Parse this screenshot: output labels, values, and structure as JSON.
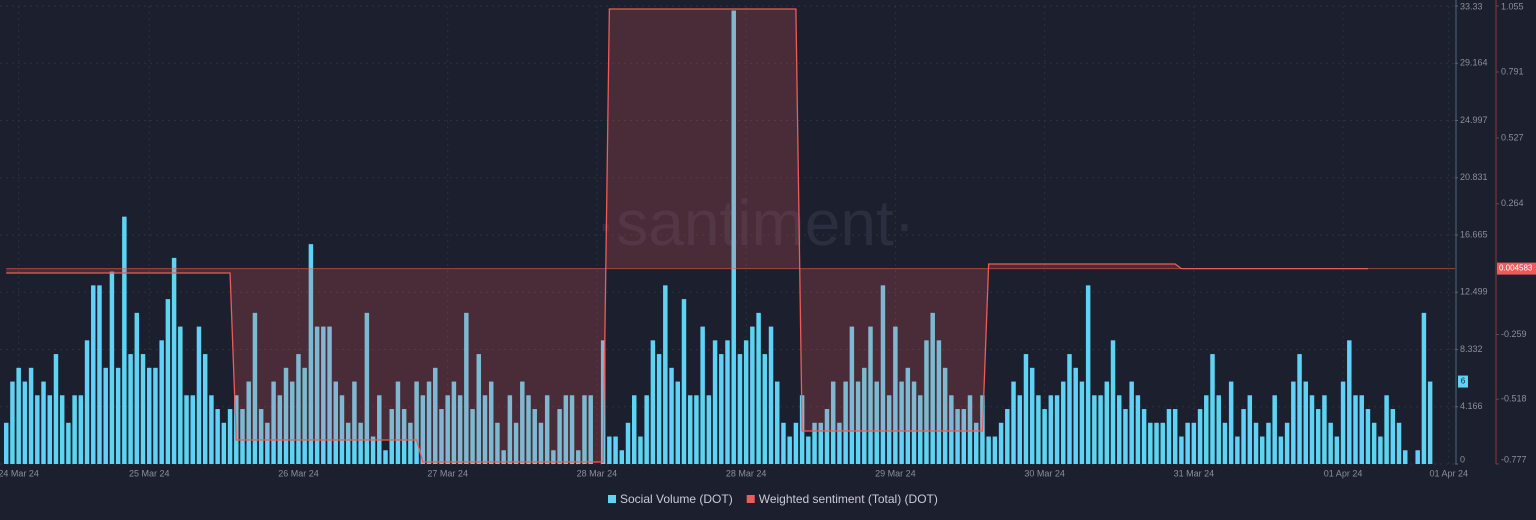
{
  "chart_data": {
    "type": "bar-line",
    "watermark": "·santiment·",
    "x": [
      0,
      1,
      2,
      3,
      4,
      5,
      6,
      7,
      8,
      9,
      10,
      11,
      12,
      13,
      14,
      15,
      16,
      17,
      18,
      19,
      20,
      21,
      22,
      23,
      24,
      25,
      26,
      27,
      28,
      29,
      30,
      31,
      32,
      33,
      34,
      35,
      36,
      37,
      38,
      39,
      40,
      41,
      42,
      43,
      44,
      45,
      46,
      47,
      48,
      49,
      50,
      51,
      52,
      53,
      54,
      55,
      56,
      57,
      58,
      59,
      60,
      61,
      62,
      63,
      64,
      65,
      66,
      67,
      68,
      69,
      70,
      71,
      72,
      73,
      74,
      75,
      76,
      77,
      78,
      79,
      80,
      81,
      82,
      83,
      84,
      85,
      86,
      87,
      88,
      89,
      90,
      91,
      92,
      93,
      94,
      95,
      96,
      97,
      98,
      99,
      100,
      101,
      102,
      103,
      104,
      105,
      106,
      107,
      108,
      109,
      110,
      111,
      112,
      113,
      114,
      115,
      116,
      117,
      118,
      119,
      120,
      121,
      122,
      123,
      124,
      125,
      126,
      127,
      128,
      129,
      130,
      131,
      132,
      133,
      134,
      135,
      136,
      137,
      138,
      139,
      140,
      141,
      142,
      143,
      144,
      145,
      146,
      147,
      148,
      149,
      150,
      151,
      152,
      153,
      154,
      155,
      156,
      157,
      158,
      159,
      160,
      161,
      162,
      163,
      164,
      165,
      166,
      167,
      168,
      169,
      170,
      171,
      172,
      173,
      174,
      175,
      176,
      177,
      178,
      179,
      180,
      181,
      182,
      183,
      184,
      185,
      186,
      187,
      188,
      189,
      190,
      191,
      192,
      193,
      194,
      195,
      196,
      197,
      198,
      199,
      200,
      201,
      202,
      203,
      204,
      205,
      206,
      207,
      208,
      209,
      210,
      211,
      212,
      213,
      214,
      215,
      216,
      217,
      218,
      219,
      220,
      221,
      222,
      223,
      224,
      225,
      226,
      227,
      228,
      229
    ],
    "xlim": [
      -1,
      233
    ],
    "xticks": [
      {
        "value": 2,
        "label": "24 Mar 24"
      },
      {
        "value": 23,
        "label": "25 Mar 24"
      },
      {
        "value": 47,
        "label": "26 Mar 24"
      },
      {
        "value": 71,
        "label": "27 Mar 24"
      },
      {
        "value": 95,
        "label": "28 Mar 24"
      },
      {
        "value": 119,
        "label": "28 Mar 24"
      },
      {
        "value": 143,
        "label": "29 Mar 24"
      },
      {
        "value": 167,
        "label": "30 Mar 24"
      },
      {
        "value": 191,
        "label": "31 Mar 24"
      },
      {
        "value": 215,
        "label": "01 Apr 24"
      },
      {
        "value": 232,
        "label": "01 Apr 24"
      }
    ],
    "ylim": [
      0,
      33.33
    ],
    "yticks": [
      0,
      4.166,
      8.332,
      12.499,
      16.665,
      20.831,
      24.997,
      29.164,
      33.33
    ],
    "y2lim": [
      -0.777,
      1.055
    ],
    "y2ticks": [
      -0.777,
      -0.518,
      -0.259,
      0.264,
      0.527,
      0.791,
      1.055
    ],
    "grid": true,
    "legend": "bottom",
    "series": [
      {
        "name": "Social Volume (DOT)",
        "color": "#5fd3f3",
        "type": "bar",
        "values": [
          3,
          6,
          7,
          6,
          7,
          5,
          6,
          5,
          8,
          5,
          3,
          5,
          5,
          9,
          13,
          13,
          7,
          14,
          7,
          18,
          8,
          11,
          8,
          7,
          7,
          9,
          12,
          15,
          10,
          5,
          5,
          10,
          8,
          5,
          4,
          3,
          4,
          5,
          4,
          6,
          11,
          4,
          3,
          6,
          5,
          7,
          6,
          8,
          7,
          16,
          10,
          10,
          10,
          6,
          5,
          3,
          6,
          3,
          11,
          2,
          5,
          1,
          4,
          6,
          4,
          3,
          6,
          5,
          6,
          7,
          4,
          5,
          6,
          5,
          11,
          4,
          8,
          5,
          6,
          3,
          1,
          5,
          3,
          6,
          5,
          4,
          3,
          5,
          1,
          4,
          5,
          5,
          1,
          5,
          5,
          0,
          9,
          2,
          2,
          1,
          3,
          5,
          2,
          5,
          9,
          8,
          13,
          7,
          6,
          12,
          5,
          5,
          10,
          5,
          9,
          8,
          9,
          33,
          8,
          9,
          10,
          11,
          8,
          10,
          6,
          3,
          2,
          3,
          5,
          2,
          3,
          3,
          4,
          6,
          3,
          6,
          10,
          6,
          7,
          10,
          6,
          13,
          5,
          10,
          6,
          7,
          6,
          5,
          9,
          11,
          9,
          7,
          5,
          4,
          4,
          5,
          3,
          5,
          2,
          2,
          3,
          4,
          6,
          5,
          8,
          7,
          5,
          4,
          5,
          5,
          6,
          8,
          7,
          6,
          13,
          5,
          5,
          6,
          9,
          5,
          4,
          6,
          5,
          4,
          3,
          3,
          3,
          4,
          4,
          2,
          3,
          3,
          4,
          5,
          8,
          5,
          3,
          6,
          2,
          4,
          5,
          3,
          2,
          3,
          5,
          2,
          3,
          6,
          8,
          6,
          5,
          4,
          5,
          3,
          2,
          6,
          9,
          5,
          5,
          4,
          3,
          2,
          5,
          4,
          3,
          1,
          0,
          1,
          11,
          6
        ]
      },
      {
        "name": "Weighted sentiment (Total) (DOT)",
        "color": "#ef5a5a",
        "type": "line",
        "axis": "y2",
        "values": [
          -0.013,
          -0.013,
          -0.013,
          -0.013,
          -0.013,
          -0.013,
          -0.013,
          -0.013,
          -0.013,
          -0.013,
          -0.013,
          -0.013,
          -0.013,
          -0.013,
          -0.013,
          -0.013,
          -0.013,
          -0.013,
          -0.013,
          -0.013,
          -0.013,
          -0.013,
          -0.013,
          -0.013,
          -0.013,
          -0.013,
          -0.013,
          -0.013,
          -0.013,
          -0.013,
          -0.013,
          -0.013,
          -0.013,
          -0.013,
          -0.013,
          -0.013,
          -0.013,
          -0.681,
          -0.681,
          -0.681,
          -0.681,
          -0.681,
          -0.681,
          -0.681,
          -0.681,
          -0.681,
          -0.681,
          -0.681,
          -0.681,
          -0.681,
          -0.681,
          -0.681,
          -0.681,
          -0.681,
          -0.681,
          -0.681,
          -0.681,
          -0.681,
          -0.681,
          -0.681,
          -0.681,
          -0.681,
          -0.681,
          -0.681,
          -0.681,
          -0.681,
          -0.681,
          -0.769,
          -0.769,
          -0.769,
          -0.769,
          -0.769,
          -0.769,
          -0.769,
          -0.769,
          -0.769,
          -0.769,
          -0.769,
          -0.769,
          -0.769,
          -0.769,
          -0.769,
          -0.769,
          -0.769,
          -0.769,
          -0.769,
          -0.769,
          -0.769,
          -0.769,
          -0.769,
          -0.769,
          -0.769,
          -0.769,
          -0.769,
          -0.769,
          -0.769,
          -0.769,
          1.043,
          1.043,
          1.043,
          1.043,
          1.043,
          1.043,
          1.043,
          1.043,
          1.043,
          1.043,
          1.043,
          1.043,
          1.043,
          1.043,
          1.043,
          1.043,
          1.043,
          1.043,
          1.043,
          1.043,
          1.043,
          1.043,
          1.043,
          1.043,
          1.043,
          1.043,
          1.043,
          1.043,
          1.043,
          1.043,
          1.043,
          -0.645,
          -0.645,
          -0.645,
          -0.645,
          -0.645,
          -0.645,
          -0.645,
          -0.645,
          -0.645,
          -0.645,
          -0.645,
          -0.645,
          -0.645,
          -0.645,
          -0.645,
          -0.645,
          -0.645,
          -0.645,
          -0.645,
          -0.645,
          -0.645,
          -0.645,
          -0.645,
          -0.645,
          -0.645,
          -0.645,
          -0.645,
          -0.645,
          -0.645,
          -0.645,
          0.023,
          0.023,
          0.023,
          0.023,
          0.023,
          0.023,
          0.023,
          0.023,
          0.023,
          0.023,
          0.023,
          0.023,
          0.023,
          0.023,
          0.023,
          0.023,
          0.023,
          0.023,
          0.023,
          0.023,
          0.023,
          0.023,
          0.023,
          0.023,
          0.023,
          0.023,
          0.023,
          0.023,
          0.023,
          0.023,
          0.023,
          0.004583,
          0.004583,
          0.004583,
          0.004583,
          0.004583,
          0.004583,
          0.004583,
          0.004583,
          0.004583,
          0.004583,
          0.004583,
          0.004583,
          0.004583,
          0.004583,
          0.004583,
          0.004583,
          0.004583,
          0.004583,
          0.004583,
          0.004583,
          0.004583,
          0.004583,
          0.004583,
          0.004583,
          0.004583,
          0.004583,
          0.004583,
          0.004583,
          0.004583,
          0.004583,
          0.004583,
          null,
          null,
          null,
          null,
          null,
          null,
          null,
          null,
          null,
          null
        ]
      }
    ]
  }
}
